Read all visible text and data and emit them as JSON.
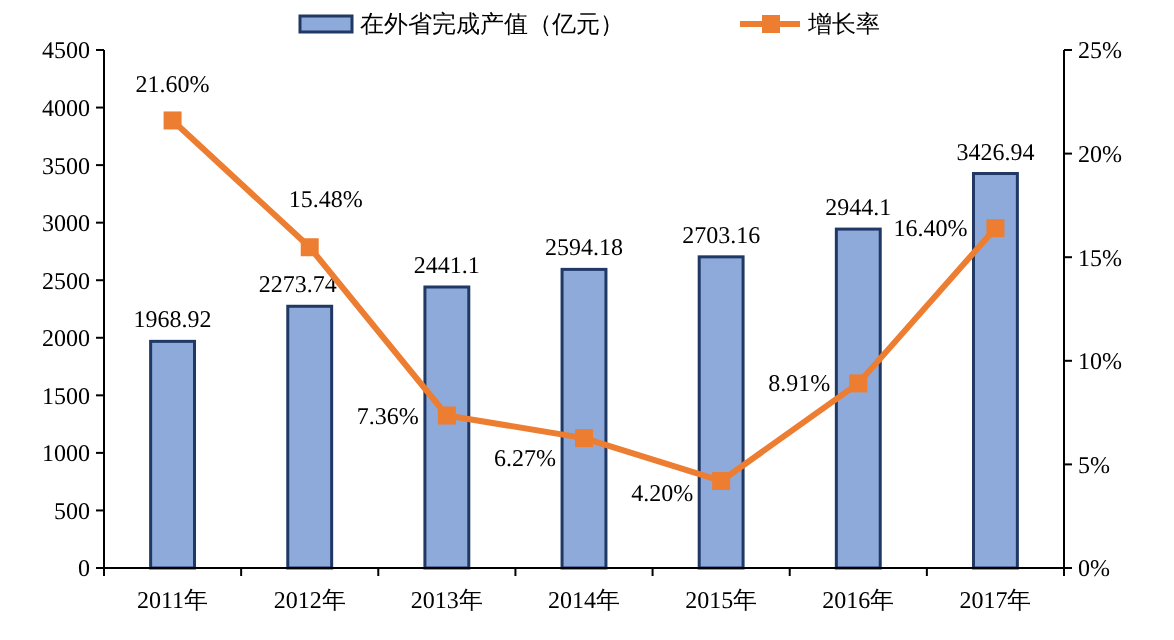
{
  "chart_data": {
    "type": "bar",
    "categories": [
      "2011年",
      "2012年",
      "2013年",
      "2014年",
      "2015年",
      "2016年",
      "2017年"
    ],
    "series": [
      {
        "name": "在外省完成产值（亿元）",
        "color": "#8eaadb",
        "values": [
          1968.92,
          2273.74,
          2441.1,
          2594.18,
          2703.16,
          2944.1,
          3426.94
        ],
        "value_labels": [
          "1968.92",
          "2273.74",
          "2441.1",
          "2594.18",
          "2703.16",
          "2944.1",
          "3426.94"
        ]
      },
      {
        "name": "增长率",
        "type": "line",
        "axis": "y2",
        "color": "#ed7d31",
        "marker": "square",
        "values": [
          21.6,
          15.48,
          7.36,
          6.27,
          4.2,
          8.91,
          16.4
        ],
        "value_labels": [
          "21.60%",
          "15.48%",
          "7.36%",
          "6.27%",
          "4.20%",
          "8.91%",
          "16.40%"
        ]
      }
    ],
    "ylim": [
      0,
      4500
    ],
    "yticks": [
      0,
      500,
      1000,
      1500,
      2000,
      2500,
      3000,
      3500,
      4000,
      4500
    ],
    "y2lim": [
      0,
      25
    ],
    "y2ticks": [
      {
        "value": 0,
        "label": "0%"
      },
      {
        "value": 5,
        "label": "5%"
      },
      {
        "value": 10,
        "label": "10%"
      },
      {
        "value": 15,
        "label": "15%"
      },
      {
        "value": 20,
        "label": "20%"
      },
      {
        "value": 25,
        "label": "25%"
      }
    ],
    "legend": "top",
    "grid": false
  }
}
